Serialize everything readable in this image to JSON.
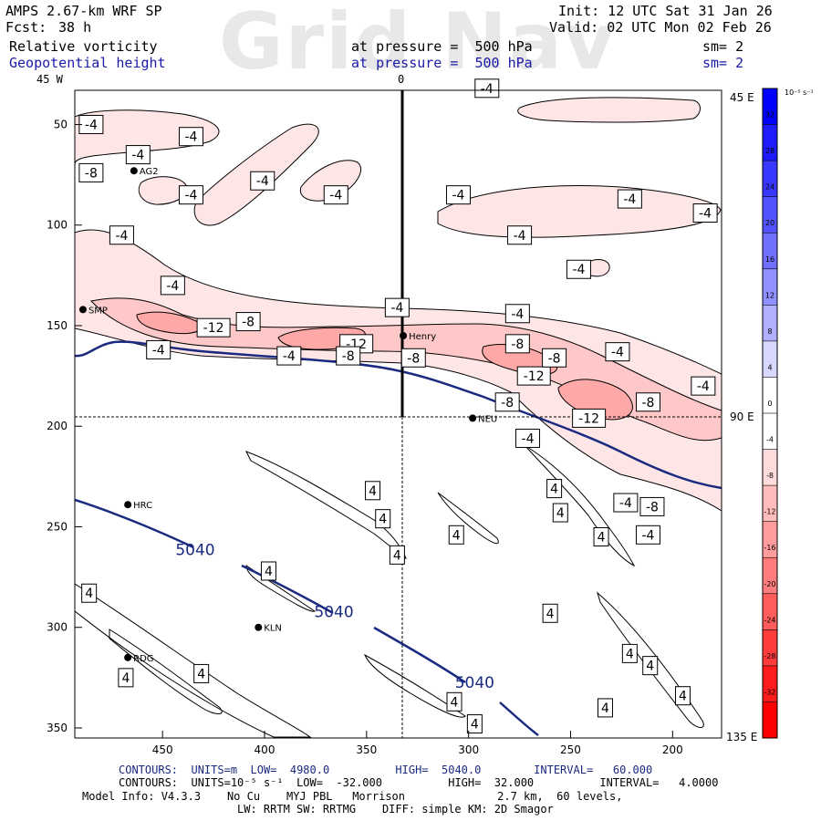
{
  "header": {
    "model": "AMPS 2.67-km WRF SP",
    "fcst_label": "Fcst:",
    "fcst_value": "38 h",
    "init": "Init: 12 UTC Sat 31 Jan 26",
    "valid": "Valid: 02 UTC Mon 02 Feb 26",
    "watermark": "Grid Nav"
  },
  "fields": [
    {
      "name": "Relative vorticity",
      "pressure": "at pressure =  500 hPa",
      "sm": "sm= 2",
      "color": "#000000"
    },
    {
      "name": "Geopotential height",
      "pressure": "at pressure =  500 hPa",
      "sm": "sm= 2",
      "color": "#1a1aa8"
    }
  ],
  "top_labels": {
    "left": "45 W",
    "center": "0"
  },
  "right_labels": {
    "top": "45 E",
    "middle": "90 E",
    "bottom": "135 E"
  },
  "chart_data": {
    "type": "heatmap",
    "x_ticks": [
      450,
      400,
      350,
      300,
      250,
      200
    ],
    "y_ticks": [
      50,
      100,
      150,
      200,
      250,
      300,
      350
    ],
    "xlim": [
      493,
      176
    ],
    "ylim": [
      33,
      355
    ],
    "vorticity_levels": [
      -12,
      -8,
      -4,
      4
    ],
    "vorticity_labels": [
      {
        "v": "-4",
        "x": 485,
        "y": 50
      },
      {
        "v": "-4",
        "x": 436,
        "y": 56
      },
      {
        "v": "-4",
        "x": 462,
        "y": 65
      },
      {
        "v": "-8",
        "x": 485,
        "y": 74
      },
      {
        "v": "-4",
        "x": 401,
        "y": 78
      },
      {
        "v": "-4",
        "x": 436,
        "y": 85
      },
      {
        "v": "-4",
        "x": 365,
        "y": 85
      },
      {
        "v": "-4",
        "x": 470,
        "y": 105
      },
      {
        "v": "-4",
        "x": 445,
        "y": 130
      },
      {
        "v": "-4",
        "x": 335,
        "y": 141
      },
      {
        "v": "-12",
        "x": 425,
        "y": 151
      },
      {
        "v": "-8",
        "x": 408,
        "y": 148
      },
      {
        "v": "-4",
        "x": 452,
        "y": 162
      },
      {
        "v": "-12",
        "x": 355,
        "y": 159
      },
      {
        "v": "-8",
        "x": 327,
        "y": 166
      },
      {
        "v": "-4",
        "x": 388,
        "y": 165
      },
      {
        "v": "-8",
        "x": 359,
        "y": 165
      },
      {
        "v": "-4",
        "x": 291,
        "y": 32
      },
      {
        "v": "-4",
        "x": 305,
        "y": 85
      },
      {
        "v": "-4",
        "x": 221,
        "y": 87
      },
      {
        "v": "-4",
        "x": 184,
        "y": 94
      },
      {
        "v": "-4",
        "x": 275,
        "y": 105
      },
      {
        "v": "-4",
        "x": 246,
        "y": 122
      },
      {
        "v": "-4",
        "x": 276,
        "y": 144
      },
      {
        "v": "-8",
        "x": 276,
        "y": 159
      },
      {
        "v": "-12",
        "x": 268,
        "y": 175
      },
      {
        "v": "-8",
        "x": 258,
        "y": 166
      },
      {
        "v": "-4",
        "x": 227,
        "y": 163
      },
      {
        "v": "-4",
        "x": 185,
        "y": 180
      },
      {
        "v": "-8",
        "x": 281,
        "y": 188
      },
      {
        "v": "-12",
        "x": 241,
        "y": 196
      },
      {
        "v": "-8",
        "x": 212,
        "y": 188
      },
      {
        "v": "-4",
        "x": 271,
        "y": 206
      },
      {
        "v": "4",
        "x": 347,
        "y": 232
      },
      {
        "v": "4",
        "x": 342,
        "y": 246
      },
      {
        "v": "4",
        "x": 306,
        "y": 254
      },
      {
        "v": "4",
        "x": 335,
        "y": 264
      },
      {
        "v": "4",
        "x": 398,
        "y": 272
      },
      {
        "v": "4",
        "x": 486,
        "y": 283
      },
      {
        "v": "4",
        "x": 233,
        "y": 340
      },
      {
        "v": "4",
        "x": 221,
        "y": 313
      },
      {
        "v": "4",
        "x": 307,
        "y": 337
      },
      {
        "v": "4",
        "x": 297,
        "y": 348
      },
      {
        "v": "4",
        "x": 468,
        "y": 325
      },
      {
        "v": "4",
        "x": 431,
        "y": 323
      },
      {
        "v": "4",
        "x": 211,
        "y": 319
      },
      {
        "v": "4",
        "x": 258,
        "y": 231
      },
      {
        "v": "4",
        "x": 255,
        "y": 243
      },
      {
        "v": "4",
        "x": 235,
        "y": 255
      },
      {
        "v": "4",
        "x": 195,
        "y": 334
      },
      {
        "v": "-4",
        "x": 223,
        "y": 238
      },
      {
        "v": "-8",
        "x": 210,
        "y": 240
      },
      {
        "v": "-4",
        "x": 212,
        "y": 254
      },
      {
        "v": "4",
        "x": 260,
        "y": 293
      }
    ],
    "height_labels": [
      {
        "v": "5040",
        "x": 434,
        "y": 264
      },
      {
        "v": "5040",
        "x": 366,
        "y": 295
      },
      {
        "v": "5040",
        "x": 297,
        "y": 330
      }
    ],
    "stations": [
      {
        "name": "AG2",
        "x": 464,
        "y": 73
      },
      {
        "name": "SMP",
        "x": 489,
        "y": 142
      },
      {
        "name": "Henry",
        "x": 332,
        "y": 155
      },
      {
        "name": "NEU",
        "x": 298,
        "y": 196
      },
      {
        "name": "HRC",
        "x": 467,
        "y": 239
      },
      {
        "name": "KLN",
        "x": 403,
        "y": 300
      },
      {
        "name": "RDG",
        "x": 467,
        "y": 315
      }
    ],
    "cross_section_x": 333,
    "cross_section_y": 196
  },
  "colorbar": {
    "unit": "10⁻⁵ s⁻¹",
    "levels": [
      32,
      28,
      24,
      20,
      16,
      12,
      8,
      4,
      0,
      -4,
      -8,
      -12,
      -16,
      -20,
      -24,
      -28,
      -32
    ],
    "colors": [
      "#0000ff",
      "#1c1cff",
      "#3838ff",
      "#5454ff",
      "#7070ff",
      "#9090ff",
      "#b0b0ff",
      "#d8d8ff",
      "#ffffff",
      "#ffffff",
      "#ffdcdc",
      "#ffbcbc",
      "#ff9c9c",
      "#ff7c7c",
      "#ff5c5c",
      "#ff3c3c",
      "#ff1c1c",
      "#ff0000"
    ]
  },
  "footer": {
    "line1": "CONTOURS:  UNITS=m  LOW=  4980.0          HIGH=  5040.0        INTERVAL=   60.000",
    "line2": "CONTOURS:  UNITS=10⁻⁵ s⁻¹  LOW=  -32.000          HIGH=  32.000          INTERVAL=   4.0000",
    "line3": "Model Info: V4.3.3    No Cu    MYJ PBL   Morrison              2.7 km,  60 levels,",
    "line4": "LW: RRTM SW: RRTMG    DIFF: simple KM: 2D Smagor"
  }
}
